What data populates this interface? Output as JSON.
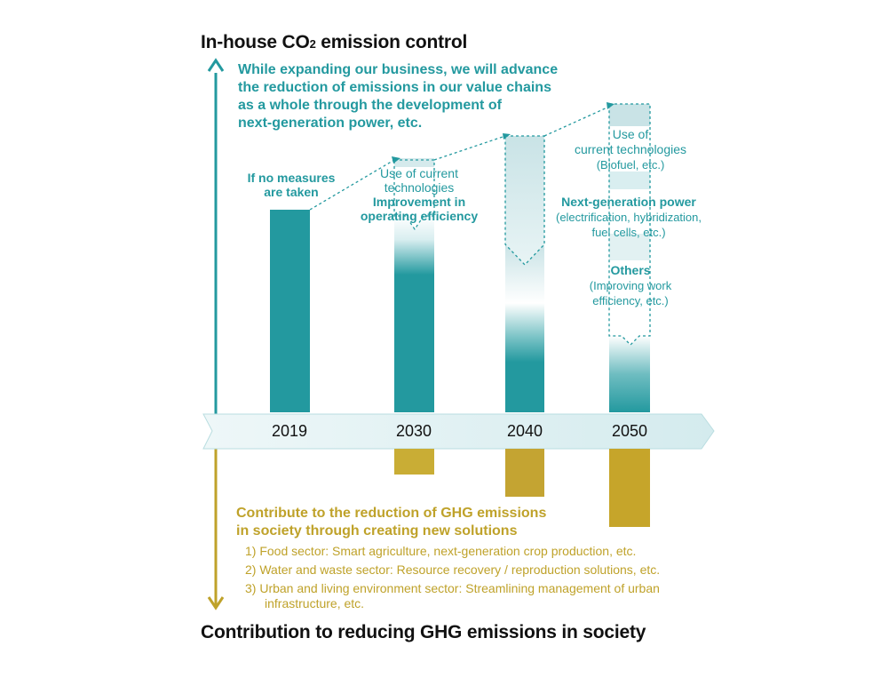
{
  "top_title": "In-house CO",
  "top_title_sub": "2",
  "top_title_rest": " emission control",
  "intro_lines": [
    "While expanding our business, we will advance",
    "the reduction of emissions in our value chains",
    "as a whole through the development of",
    "next-generation power, etc."
  ],
  "no_measures": [
    "If no measures",
    "are taken"
  ],
  "label_2030": [
    "Use of current",
    "technologies",
    "Improvement in",
    "operating efficiency"
  ],
  "label_2050": {
    "current": [
      "Use of",
      "current technologies"
    ],
    "current_note": "(Biofuel, etc.)",
    "nextgen_title": "Next-generation power",
    "nextgen_note": [
      "(electrification, hybridization,",
      "fuel cells, etc.)"
    ],
    "others_title": "Others",
    "others_note": [
      "(Improving work",
      "efficiency, etc.)"
    ]
  },
  "years": [
    "2019",
    "2030",
    "2040",
    "2050"
  ],
  "contribution_lines": [
    "Contribute to the reduction of GHG emissions",
    "in society through creating new solutions"
  ],
  "sectors": [
    "1) Food sector: Smart agriculture, next-generation crop production, etc.",
    "2) Water and waste sector: Resource recovery / reproduction solutions, etc.",
    "3) Urban and living environment sector: Streamlining management of urban",
    "infrastructure, etc."
  ],
  "bottom_title": "Contribution to reducing GHG emissions in society",
  "colors": {
    "teal": "#23999f",
    "gold": "#bfa22a",
    "band": "#dbeef0"
  },
  "chart_data": {
    "type": "bar",
    "categories": [
      "2019",
      "2030",
      "2040",
      "2050"
    ],
    "series": [
      {
        "name": "In-house CO2 emission control",
        "values": [
          230,
          215,
          165,
          85
        ]
      },
      {
        "name": "Contribution to reducing GHG emissions in society",
        "values": [
          0,
          27,
          50,
          85
        ]
      }
    ]
  }
}
